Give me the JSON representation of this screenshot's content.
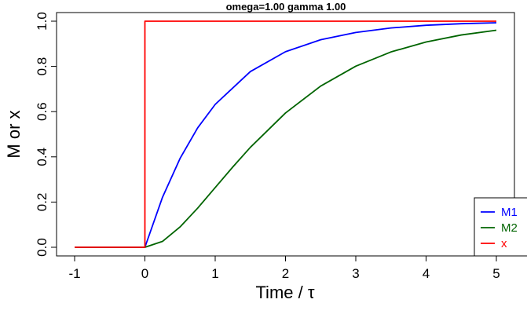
{
  "chart_data": {
    "type": "line",
    "title": "omega=1.00 gamma 1.00",
    "xlabel": "Time / τ",
    "ylabel": "M or x",
    "xlim": [
      -1.0,
      5.0
    ],
    "ylim": [
      0.0,
      1.0
    ],
    "x_ticks": [
      "-1",
      "0",
      "1",
      "2",
      "3",
      "4",
      "5"
    ],
    "y_ticks": [
      "0.0",
      "0.2",
      "0.4",
      "0.6",
      "0.8",
      "1.0"
    ],
    "grid": false,
    "legend_position": "bottom-right",
    "series": [
      {
        "name": "M1",
        "color": "#0000ff",
        "x": [
          -1,
          0,
          0.25,
          0.5,
          0.75,
          1,
          1.5,
          2,
          2.5,
          3,
          3.5,
          4,
          4.5,
          5
        ],
        "y": [
          0,
          0,
          0.221,
          0.393,
          0.528,
          0.632,
          0.777,
          0.865,
          0.918,
          0.95,
          0.97,
          0.982,
          0.989,
          0.993
        ]
      },
      {
        "name": "M2",
        "color": "#006400",
        "x": [
          -1,
          0,
          0.25,
          0.5,
          0.75,
          1,
          1.25,
          1.5,
          2,
          2.5,
          3,
          3.5,
          4,
          4.5,
          5
        ],
        "y": [
          0,
          0,
          0.026,
          0.09,
          0.173,
          0.264,
          0.355,
          0.442,
          0.594,
          0.713,
          0.801,
          0.864,
          0.908,
          0.939,
          0.96
        ]
      },
      {
        "name": "x",
        "color": "#ff0000",
        "x": [
          -1,
          0,
          0,
          5
        ],
        "y": [
          0,
          0,
          1,
          1
        ]
      }
    ]
  }
}
